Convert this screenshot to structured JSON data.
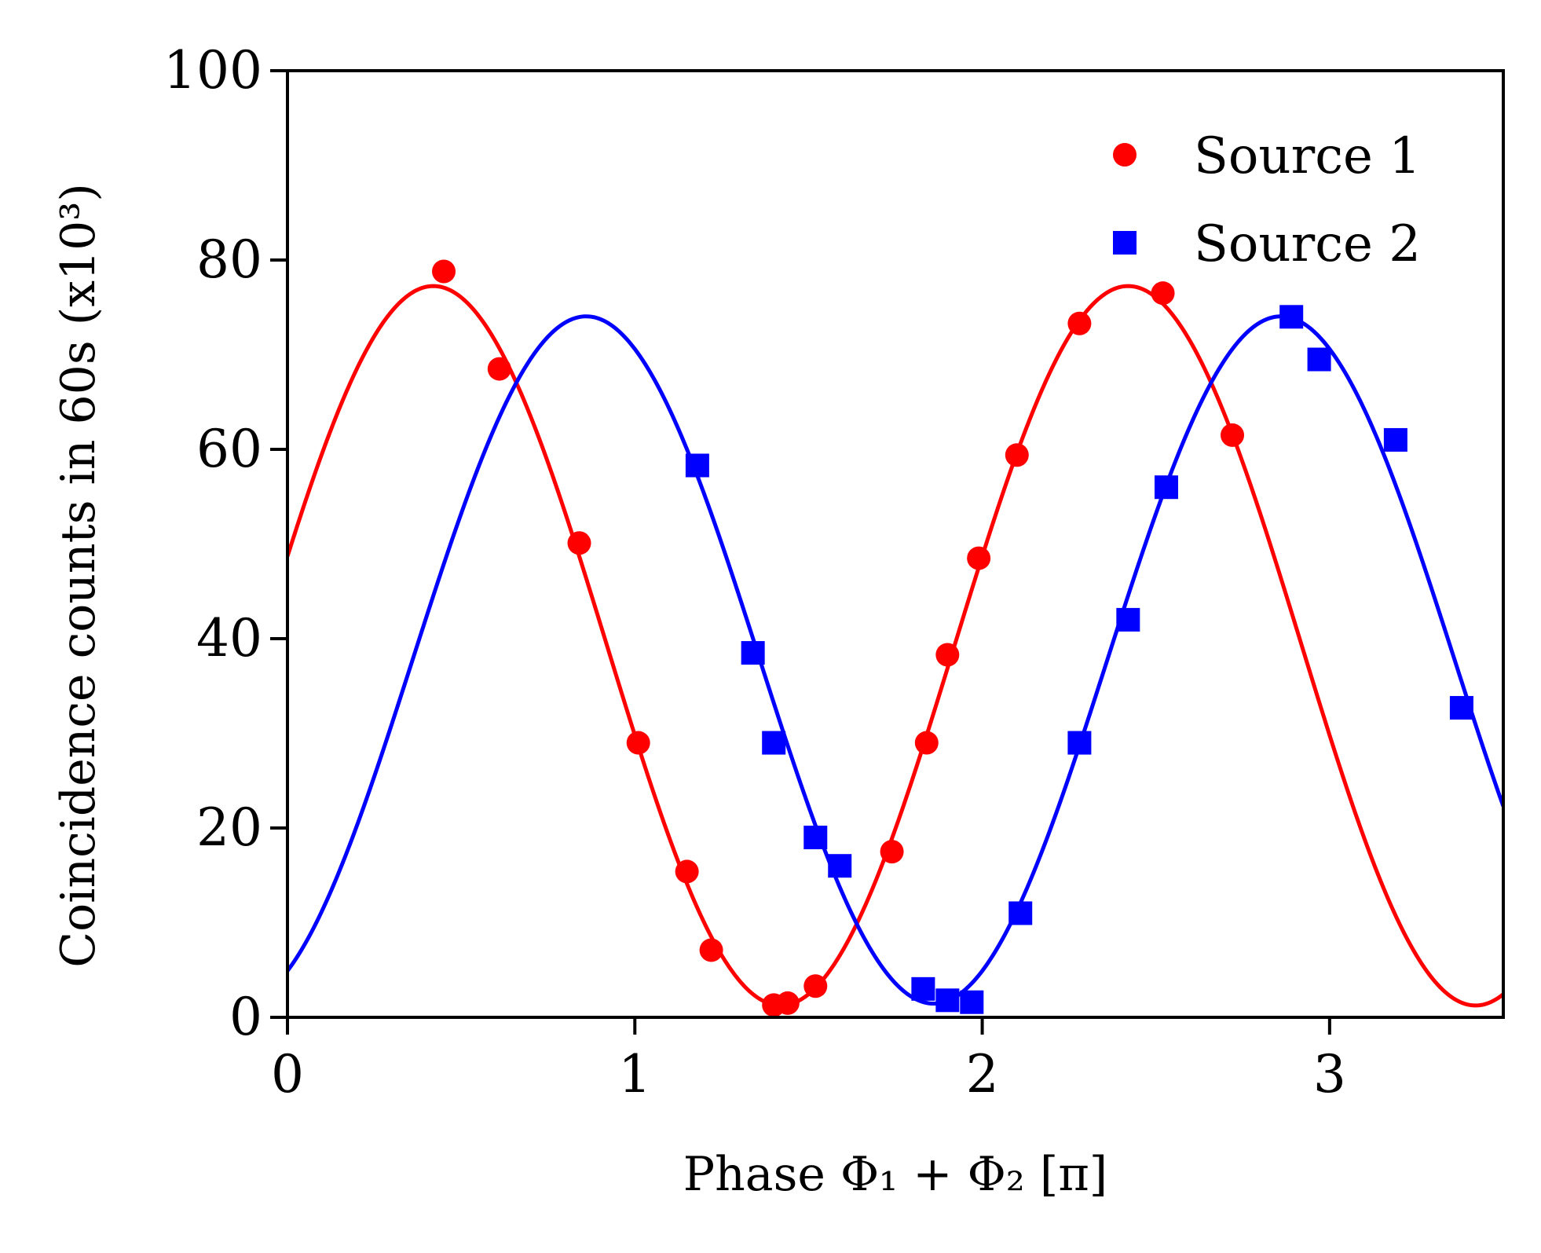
{
  "chart_data": {
    "type": "scatter",
    "xlabel": "Phase Φ₁ + Φ₂ [π]",
    "ylabel": "Coincidence counts in 60s (x10³)",
    "xlim": [
      0,
      3.5
    ],
    "ylim": [
      0,
      100
    ],
    "xticks": [
      0,
      1,
      2,
      3
    ],
    "yticks": [
      0,
      20,
      40,
      60,
      80,
      100
    ],
    "xtick_labels": [
      "0",
      "1",
      "2",
      "3"
    ],
    "ytick_labels": [
      "0",
      "20",
      "40",
      "60",
      "80",
      "100"
    ],
    "grid": false,
    "legend": {
      "position": "top-right"
    },
    "series": [
      {
        "name": "Source 1",
        "marker": "circle",
        "color": "#ff0000",
        "points": [
          [
            0.45,
            78.8
          ],
          [
            0.61,
            68.5
          ],
          [
            0.84,
            50.1
          ],
          [
            1.01,
            29.0
          ],
          [
            1.15,
            15.4
          ],
          [
            1.22,
            7.1
          ],
          [
            1.4,
            1.3
          ],
          [
            1.44,
            1.5
          ],
          [
            1.52,
            3.3
          ],
          [
            1.74,
            17.5
          ],
          [
            1.84,
            29.0
          ],
          [
            1.9,
            38.3
          ],
          [
            1.99,
            48.5
          ],
          [
            2.1,
            59.4
          ],
          [
            2.28,
            73.3
          ],
          [
            2.52,
            76.5
          ],
          [
            2.72,
            61.5
          ]
        ],
        "fit": {
          "offset": 39.25,
          "amplitude": 38.0,
          "peak_phase": 0.42,
          "period": 2.0
        }
      },
      {
        "name": "Source 2",
        "marker": "square",
        "color": "#0000ff",
        "points": [
          [
            1.18,
            58.3
          ],
          [
            1.34,
            38.5
          ],
          [
            1.4,
            29.0
          ],
          [
            1.52,
            19.0
          ],
          [
            1.59,
            16.0
          ],
          [
            1.83,
            3.0
          ],
          [
            1.9,
            1.8
          ],
          [
            1.97,
            1.6
          ],
          [
            2.11,
            11.0
          ],
          [
            2.28,
            29.0
          ],
          [
            2.42,
            42.0
          ],
          [
            2.53,
            56.0
          ],
          [
            2.89,
            74.0
          ],
          [
            2.97,
            69.5
          ],
          [
            3.19,
            61.0
          ],
          [
            3.38,
            32.7
          ]
        ],
        "fit": {
          "offset": 37.75,
          "amplitude": 36.3,
          "peak_phase": 0.86,
          "period": 2.0
        }
      }
    ]
  }
}
